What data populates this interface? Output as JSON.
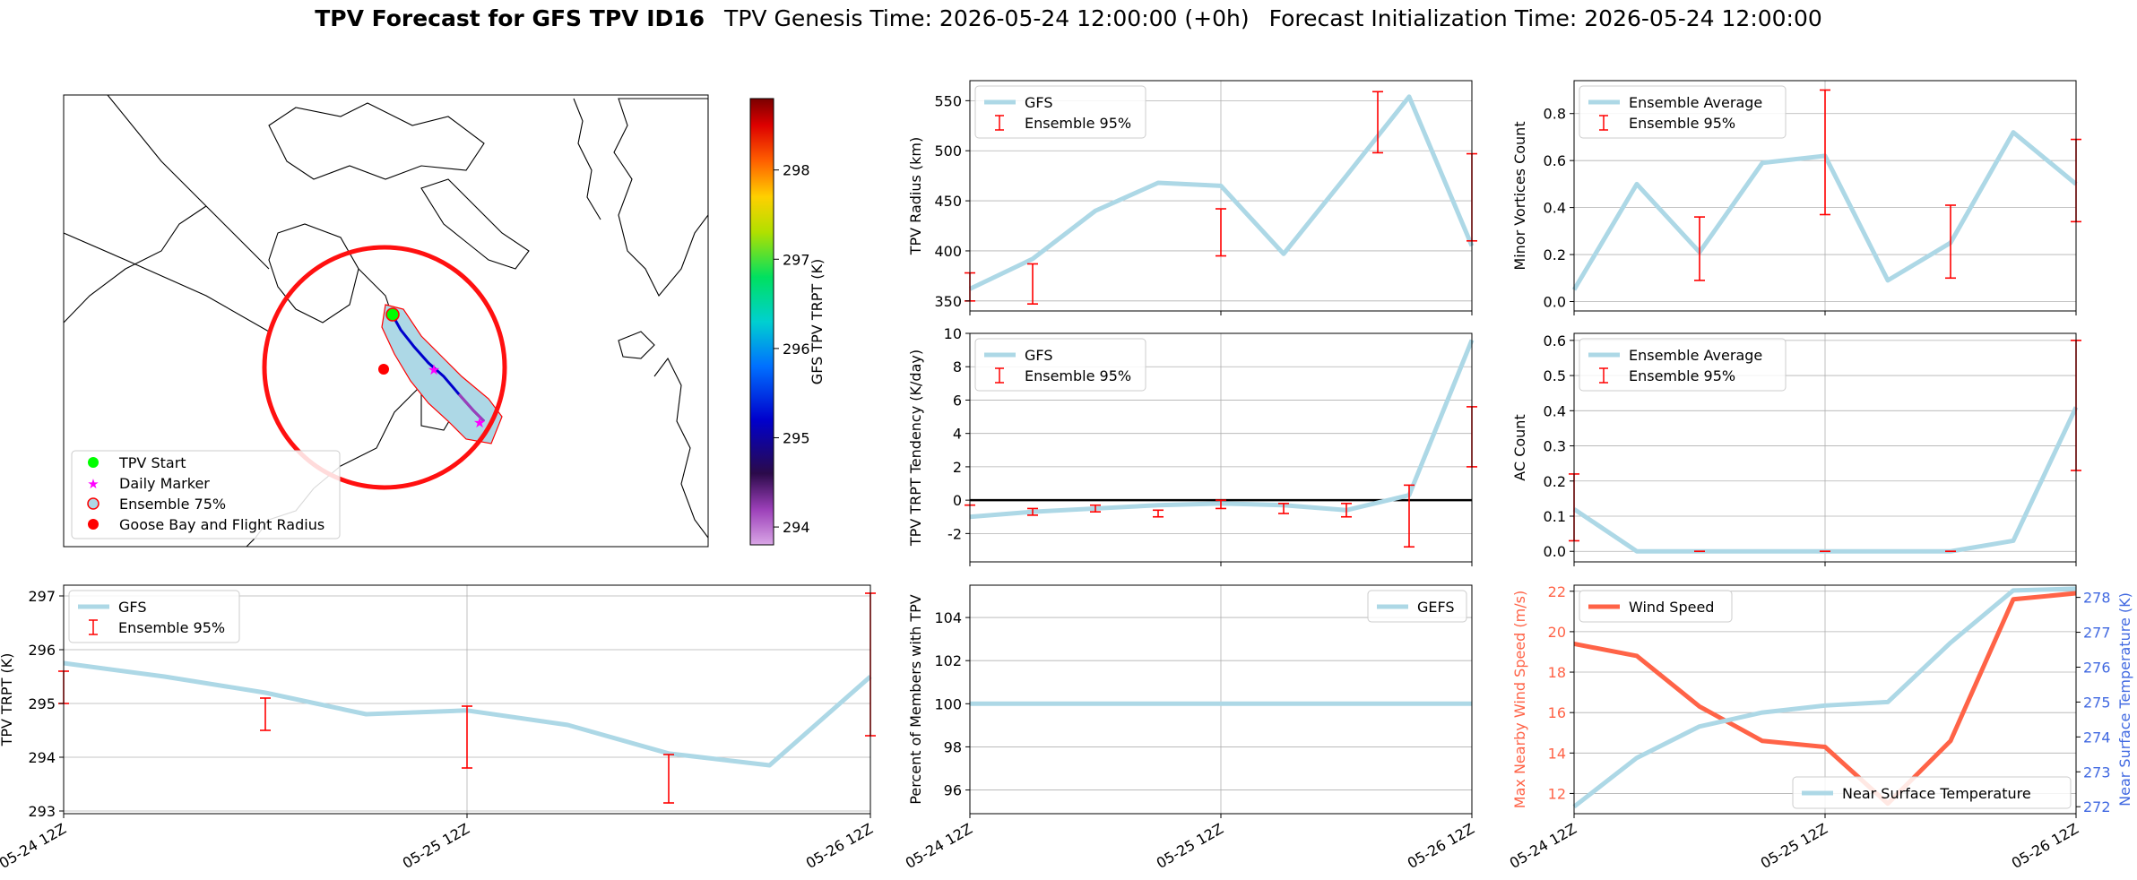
{
  "header": {
    "title_bold": "TPV Forecast for GFS TPV ID16",
    "genesis": "TPV Genesis Time: 2026-05-24 12:00:00 (+0h)",
    "init": "Forecast Initialization Time: 2026-05-24 12:00:00"
  },
  "colors": {
    "gfs": "#add8e6",
    "ensemble": "#ff0000",
    "wind": "#ff6347",
    "temp_axis": "#4169e1",
    "wind_axis": "#ff6347"
  },
  "map": {
    "colorbar_label": "GFS TPV TRPT (K)",
    "colorbar_range": [
      293.8,
      298.8
    ],
    "colorbar_ticks": [
      294,
      295,
      296,
      297,
      298
    ],
    "legend": [
      {
        "label": "TPV Start",
        "marker": "circle",
        "color": "#00ff00"
      },
      {
        "label": "Daily Marker",
        "marker": "star",
        "color": "#ff00ff"
      },
      {
        "label": "Ensemble 75%",
        "marker": "ring",
        "color": "#add8e6"
      },
      {
        "label": "Goose Bay and Flight Radius",
        "marker": "circle",
        "color": "#ff0000"
      }
    ]
  },
  "chart_data": [
    {
      "id": "radius",
      "type": "line",
      "ylabel": "TPV Radius (km)",
      "ylim": [
        340,
        570
      ],
      "yticks": [
        350,
        400,
        450,
        500,
        550
      ],
      "grid": true,
      "legend": "top-left",
      "x_hours": [
        0,
        6,
        12,
        18,
        24,
        30,
        36,
        42,
        48
      ],
      "series": [
        {
          "name": "GFS",
          "values": [
            362,
            392,
            440,
            468,
            465,
            397,
            475,
            554,
            405
          ]
        }
      ],
      "errorbars": {
        "name": "Ensemble 95%",
        "x_hours": [
          0,
          6,
          24,
          39,
          48
        ],
        "low": [
          350,
          347,
          395,
          498,
          410
        ],
        "high": [
          378,
          387,
          442,
          559,
          497
        ]
      }
    },
    {
      "id": "minor",
      "type": "line",
      "ylabel": "Minor Vortices Count",
      "ylim": [
        -0.04,
        0.94
      ],
      "yticks": [
        0.0,
        0.2,
        0.4,
        0.6,
        0.8
      ],
      "ytick_labels": [
        "0.0",
        "0.2",
        "0.4",
        "0.6",
        "0.8"
      ],
      "grid": true,
      "legend": "top-left",
      "x_hours": [
        0,
        6,
        12,
        18,
        24,
        30,
        36,
        42,
        48
      ],
      "series": [
        {
          "name": "Ensemble Average",
          "values": [
            0.05,
            0.5,
            0.21,
            0.59,
            0.62,
            0.09,
            0.25,
            0.72,
            0.5
          ]
        }
      ],
      "errorbars": {
        "name": "Ensemble 95%",
        "x_hours": [
          12,
          24,
          36,
          48
        ],
        "low": [
          0.09,
          0.37,
          0.1,
          0.34
        ],
        "high": [
          0.36,
          0.9,
          0.41,
          0.69
        ]
      }
    },
    {
      "id": "tendency",
      "type": "line",
      "ylabel": "TPV TRPT Tendency (K/day)",
      "ylim": [
        -3.7,
        10
      ],
      "yticks": [
        -2,
        0,
        2,
        4,
        6,
        8,
        10
      ],
      "grid": true,
      "legend": "top-left",
      "zero_line": true,
      "x_hours": [
        0,
        6,
        12,
        18,
        24,
        30,
        36,
        42,
        48
      ],
      "series": [
        {
          "name": "GFS",
          "values": [
            -1.0,
            -0.7,
            -0.5,
            -0.3,
            -0.2,
            -0.3,
            -0.6,
            0.3,
            9.6
          ]
        }
      ],
      "errorbars": {
        "name": "Ensemble 95%",
        "x_hours": [
          0,
          6,
          12,
          18,
          24,
          30,
          36,
          42,
          48
        ],
        "low": [
          -0.3,
          -0.9,
          -0.7,
          -1.0,
          -0.5,
          -0.8,
          -1.0,
          -2.8,
          2.0
        ],
        "high": [
          -0.3,
          -0.5,
          -0.3,
          -0.6,
          0.0,
          -0.2,
          -0.2,
          0.9,
          5.6
        ]
      }
    },
    {
      "id": "ac",
      "type": "line",
      "ylabel": "AC Count",
      "ylim": [
        -0.03,
        0.62
      ],
      "yticks": [
        0.0,
        0.1,
        0.2,
        0.3,
        0.4,
        0.5,
        0.6
      ],
      "ytick_labels": [
        "0.0",
        "0.1",
        "0.2",
        "0.3",
        "0.4",
        "0.5",
        "0.6"
      ],
      "grid": true,
      "legend": "top-left",
      "x_hours": [
        0,
        6,
        12,
        18,
        24,
        30,
        36,
        42,
        48
      ],
      "series": [
        {
          "name": "Ensemble Average",
          "values": [
            0.12,
            0.0,
            0.0,
            0.0,
            0.0,
            0.0,
            0.0,
            0.03,
            0.41
          ]
        }
      ],
      "errorbars": {
        "name": "Ensemble 95%",
        "x_hours": [
          0,
          12,
          24,
          36,
          48
        ],
        "low": [
          0.03,
          0.0,
          0.0,
          0.0,
          0.23
        ],
        "high": [
          0.22,
          0.0,
          0.0,
          0.0,
          0.6
        ]
      }
    },
    {
      "id": "trpt",
      "type": "line",
      "ylabel": "TPV TRPT (K)",
      "ylim": [
        292.95,
        297.2
      ],
      "yticks": [
        293,
        294,
        295,
        296,
        297
      ],
      "grid": true,
      "legend": "top-left",
      "x_hours": [
        0,
        6,
        12,
        18,
        24,
        30,
        36,
        42,
        48
      ],
      "xticks": [
        "05-24 12Z",
        "05-25 12Z",
        "05-26 12Z"
      ],
      "series": [
        {
          "name": "GFS",
          "values": [
            295.75,
            295.5,
            295.2,
            294.8,
            294.87,
            294.6,
            294.07,
            293.85,
            295.5
          ]
        }
      ],
      "errorbars": {
        "name": "Ensemble 95%",
        "x_hours": [
          0,
          12,
          24,
          36,
          48
        ],
        "low": [
          295.0,
          294.5,
          293.8,
          293.15,
          294.4
        ],
        "high": [
          295.6,
          295.1,
          294.95,
          294.05,
          297.05
        ]
      }
    },
    {
      "id": "percent",
      "type": "line",
      "ylabel": "Percent of Members with TPV",
      "ylim": [
        94.9,
        105.5
      ],
      "yticks": [
        96,
        98,
        100,
        102,
        104
      ],
      "grid": true,
      "legend": "top-right",
      "x_hours": [
        0,
        48
      ],
      "xticks": [
        "05-24 12Z",
        "05-25 12Z",
        "05-26 12Z"
      ],
      "series": [
        {
          "name": "GEFS",
          "values": [
            100,
            100
          ]
        }
      ]
    },
    {
      "id": "wind_temp",
      "type": "line",
      "ylabel": "Max Nearby Wind Speed (m/s)",
      "ylabel_right": "Near Surface Temperature (K)",
      "ylim": [
        11.0,
        22.3
      ],
      "yticks": [
        12,
        14,
        16,
        18,
        20,
        22
      ],
      "ylim_right": [
        271.8,
        278.35
      ],
      "yticks_right": [
        272,
        273,
        274,
        275,
        276,
        277,
        278
      ],
      "grid": true,
      "x_hours": [
        0,
        6,
        12,
        18,
        24,
        30,
        36,
        42,
        48
      ],
      "xticks": [
        "05-24 12Z",
        "05-25 12Z",
        "05-26 12Z"
      ],
      "series": [
        {
          "name": "Wind Speed",
          "axis": "left",
          "values": [
            19.4,
            18.8,
            16.3,
            14.6,
            14.3,
            11.5,
            14.6,
            21.6,
            21.9
          ]
        },
        {
          "name": "Near Surface Temperature",
          "axis": "right",
          "values": [
            272.0,
            273.4,
            274.3,
            274.7,
            274.9,
            275.0,
            276.7,
            278.2,
            278.25
          ]
        }
      ],
      "legend_left": "top-left",
      "legend_right": "bottom-right"
    }
  ]
}
